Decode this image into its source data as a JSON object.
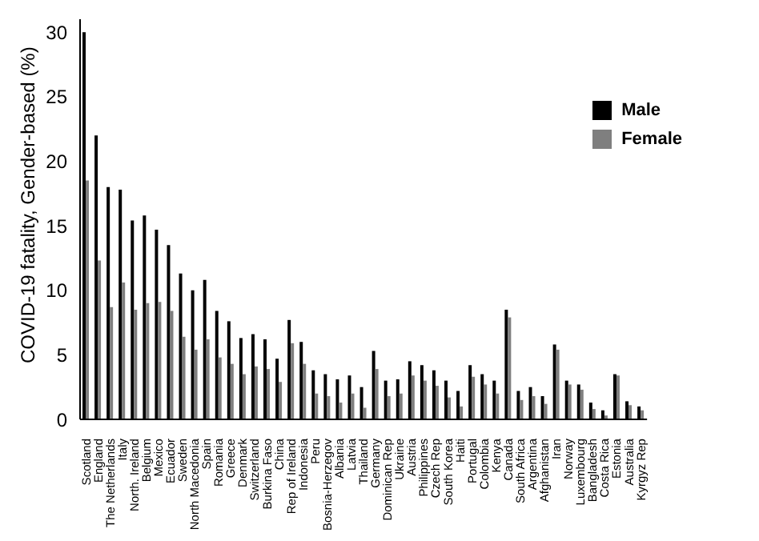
{
  "chart_data": {
    "type": "bar",
    "ylabel": "COVID-19 fatality, Gender-based (%)",
    "categories": [
      "Scotland",
      "England",
      "The Netherlands",
      "Italy",
      "North. Ireland",
      "Belgium",
      "Mexico",
      "Ecuador",
      "Sweden",
      "North Macedonia",
      "Spain",
      "Romania",
      "Greece",
      "Denmark",
      "Switzerland",
      "Burkina Faso",
      "China",
      "Rep of Ireland",
      "Indonesia",
      "Peru",
      "Bosnia-Herzegov",
      "Albania",
      "Latvia",
      "Thailand",
      "Germany",
      "Dominican Rep",
      "Ukraine",
      "Austria",
      "Philippines",
      "Czech Rep",
      "South Korea",
      "Haiti",
      "Portugal",
      "Colombia",
      "Kenya",
      "Canada",
      "South Africa",
      "Argentina",
      "Afghanistan",
      "Iran",
      "Norway",
      "Luxembourg",
      "Bangladesh",
      "Costa Rica",
      "Estonia",
      "Australia",
      "Kyrgyz Rep"
    ],
    "series": [
      {
        "name": "Male",
        "color": "#000000",
        "values": [
          30,
          22,
          18,
          17.8,
          15.4,
          15.8,
          14.7,
          13.5,
          11.3,
          10,
          10.8,
          8.4,
          7.6,
          6.3,
          6.6,
          6.2,
          4.7,
          7.7,
          6,
          3.8,
          3.5,
          3.1,
          3.4,
          2.5,
          5.3,
          3,
          3.1,
          4.5,
          4.2,
          3.8,
          3,
          2.2,
          4.2,
          3.5,
          3,
          8.5,
          2.2,
          2.5,
          1.8,
          5.8,
          3,
          2.7,
          1.3,
          0.7,
          3.5,
          1.4,
          1
        ]
      },
      {
        "name": "Female",
        "color": "#7f7f7f",
        "values": [
          18.5,
          12.3,
          8.7,
          10.6,
          8.5,
          9,
          9.1,
          8.4,
          6.4,
          5.4,
          6.2,
          4.8,
          4.3,
          3.5,
          4.1,
          3.9,
          2.9,
          5.9,
          4.3,
          2,
          1.8,
          1.3,
          2,
          0.9,
          3.9,
          1.8,
          2,
          3.4,
          3,
          2.6,
          1.7,
          1,
          3.3,
          2.7,
          2,
          7.9,
          1.5,
          1.8,
          1.2,
          5.4,
          2.7,
          2.3,
          0.8,
          0.3,
          3.4,
          1.1,
          0.7
        ]
      }
    ],
    "ylim": [
      0,
      31
    ],
    "yticks": [
      0,
      5,
      10,
      15,
      20,
      25,
      30
    ],
    "grid": false,
    "legend": "top right"
  }
}
